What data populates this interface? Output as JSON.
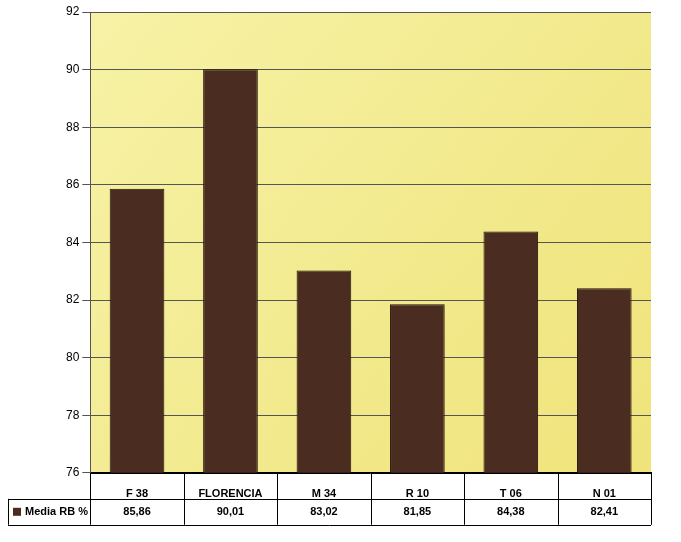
{
  "chart_data": {
    "type": "bar",
    "categories": [
      "F 38",
      "FLORENCIA",
      "M 34",
      "R 10",
      "T 06",
      "N 01"
    ],
    "series": [
      {
        "name": "Media RB %",
        "color": "#4a2c20",
        "values": [
          85.86,
          90.01,
          83.02,
          81.85,
          84.38,
          82.41
        ],
        "value_labels": [
          "85,86",
          "90,01",
          "83,02",
          "81,85",
          "84,38",
          "82,41"
        ]
      }
    ],
    "ylim": [
      76,
      92
    ],
    "yticks": [
      76,
      78,
      80,
      82,
      84,
      86,
      88,
      90,
      92
    ],
    "grid": true,
    "data_labels": true,
    "legend": "bottom"
  }
}
